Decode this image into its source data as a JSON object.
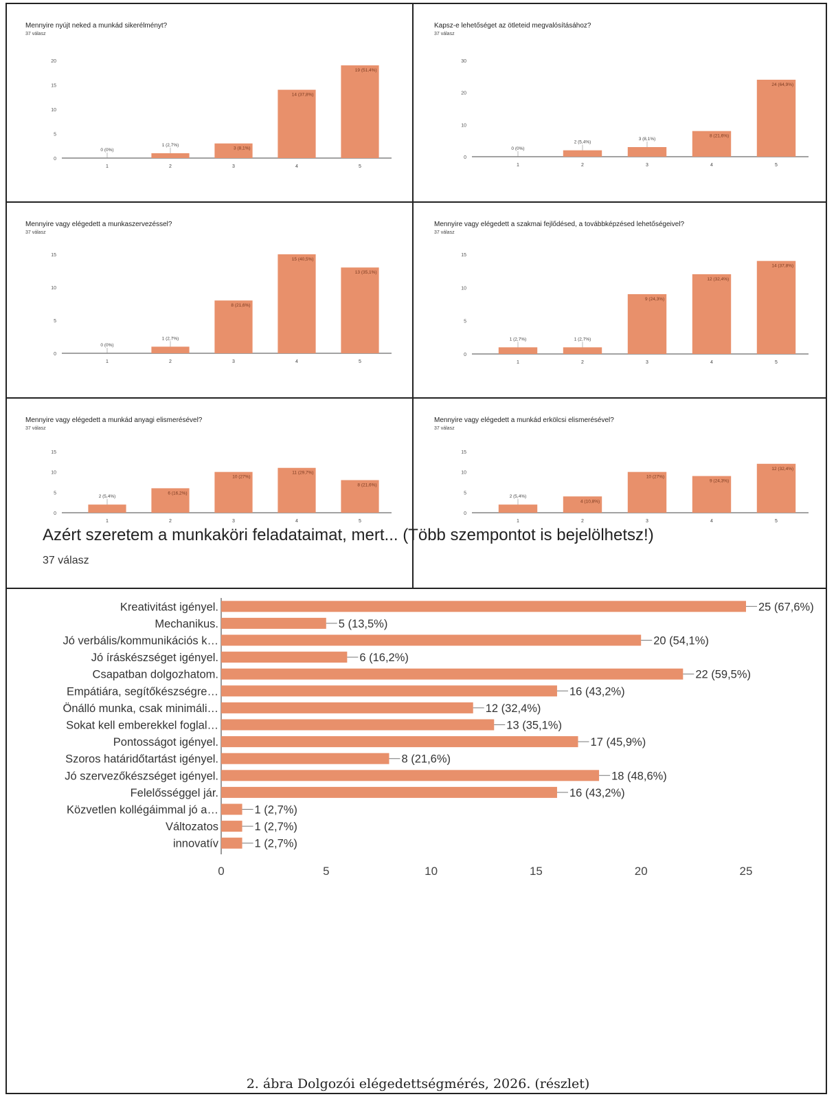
{
  "small_charts": [
    {
      "title": "Mennyire nyújt neked a munkád sikerélményt?",
      "subtitle": "37 válasz"
    },
    {
      "title": "Kapsz-e lehetőséget az ötleteid megvalósításához?",
      "subtitle": "37 válasz"
    },
    {
      "title": "Mennyire vagy elégedett a munkaszervezéssel?",
      "subtitle": "37 válasz"
    },
    {
      "title": "Mennyire vagy elégedett a szakmai fejlődésed, a továbbképzésed lehetőségeivel?",
      "subtitle": "37 válasz"
    },
    {
      "title": "Mennyire vagy elégedett a munkád anyagi elismerésével?",
      "subtitle": "37 válasz"
    },
    {
      "title": "Mennyire vagy elégedett a munkád erkölcsi elismerésével?",
      "subtitle": "37 válasz"
    }
  ],
  "big_chart": {
    "title": "Azért szeretem a munkaköri feladataimat, mert... (Több szempontot is bejelölhetsz!)",
    "subtitle": "37 válasz"
  },
  "caption": "2. ábra Dolgozói elégedettségmérés, 2026. (részlet)",
  "bar_color": "#e8906b",
  "chart_data": [
    {
      "type": "bar",
      "title": "Mennyire nyújt neked a munkád sikerélményt?",
      "categories": [
        "1",
        "2",
        "3",
        "4",
        "5"
      ],
      "values": [
        0,
        1,
        3,
        14,
        19
      ],
      "labels": [
        "0 (0%)",
        "1 (2,7%)",
        "3 (8,1%)",
        "14 (37,8%)",
        "19 (51,4%)"
      ],
      "ylim": [
        0,
        20
      ],
      "yticks": [
        0,
        5,
        10,
        15,
        20
      ]
    },
    {
      "type": "bar",
      "title": "Kapsz-e lehetőséget az ötleteid megvalósításához?",
      "categories": [
        "1",
        "2",
        "3",
        "4",
        "5"
      ],
      "values": [
        0,
        2,
        3,
        8,
        24
      ],
      "labels": [
        "0 (0%)",
        "2 (5,4%)",
        "3 (8,1%)",
        "8 (21,6%)",
        "24 (64,9%)"
      ],
      "ylim": [
        0,
        30
      ],
      "yticks": [
        0,
        10,
        20,
        30
      ]
    },
    {
      "type": "bar",
      "title": "Mennyire vagy elégedett a munkaszervezéssel?",
      "categories": [
        "1",
        "2",
        "3",
        "4",
        "5"
      ],
      "values": [
        0,
        1,
        8,
        15,
        13
      ],
      "labels": [
        "0 (0%)",
        "1 (2,7%)",
        "8 (21,6%)",
        "15 (40,5%)",
        "13 (35,1%)"
      ],
      "ylim": [
        0,
        15
      ],
      "yticks": [
        0,
        5,
        10,
        15
      ]
    },
    {
      "type": "bar",
      "title": "Mennyire vagy elégedett a szakmai fejlődésed, a továbbképzésed lehetőségeivel?",
      "categories": [
        "1",
        "2",
        "3",
        "4",
        "5"
      ],
      "values": [
        1,
        1,
        9,
        12,
        14
      ],
      "labels": [
        "1 (2,7%)",
        "1 (2,7%)",
        "9 (24,3%)",
        "12 (32,4%)",
        "14 (37,8%)"
      ],
      "ylim": [
        0,
        15
      ],
      "yticks": [
        0,
        5,
        10,
        15
      ]
    },
    {
      "type": "bar",
      "title": "Mennyire vagy elégedett a munkád anyagi elismerésével?",
      "categories": [
        "1",
        "2",
        "3",
        "4",
        "5"
      ],
      "values": [
        2,
        6,
        10,
        11,
        8
      ],
      "labels": [
        "2 (5,4%)",
        "6 (16,2%)",
        "10 (27%)",
        "11 (29,7%)",
        "8 (21,6%)"
      ],
      "ylim": [
        0,
        15
      ],
      "yticks": [
        0,
        5,
        10,
        15
      ]
    },
    {
      "type": "bar",
      "title": "Mennyire vagy elégedett a munkád erkölcsi elismerésével?",
      "categories": [
        "1",
        "2",
        "3",
        "4",
        "5"
      ],
      "values": [
        2,
        4,
        10,
        9,
        12
      ],
      "labels": [
        "2 (5,4%)",
        "4 (10,8%)",
        "10 (27%)",
        "9 (24,3%)",
        "12 (32,4%)"
      ],
      "ylim": [
        0,
        15
      ],
      "yticks": [
        0,
        5,
        10,
        15
      ]
    },
    {
      "type": "bar",
      "orientation": "horizontal",
      "title": "Azért szeretem a munkaköri feladataimat, mert... (Több szempontot is bejelölhetsz!)",
      "categories": [
        "Kreativitást igényel.",
        "Mechanikus.",
        "Jó verbális/kommunikációs k…",
        "Jó íráskészséget igényel.",
        "Csapatban dolgozhatom.",
        "Empátiára, segítőkészségre…",
        "Önálló munka, csak minimáli…",
        "Sokat kell emberekkel foglal…",
        "Pontosságot igényel.",
        "Szoros határidőtartást igényel.",
        "Jó szervezőkészséget igényel.",
        "Felelősséggel jár.",
        "Közvetlen kollégáimmal jó a…",
        "Változatos",
        "innovatív"
      ],
      "values": [
        25,
        5,
        20,
        6,
        22,
        16,
        12,
        13,
        17,
        8,
        18,
        16,
        1,
        1,
        1
      ],
      "labels": [
        "25 (67,6%)",
        "5 (13,5%)",
        "20 (54,1%)",
        "6 (16,2%)",
        "22 (59,5%)",
        "16 (43,2%)",
        "12 (32,4%)",
        "13 (35,1%)",
        "17 (45,9%)",
        "8 (21,6%)",
        "18 (48,6%)",
        "16 (43,2%)",
        "1 (2,7%)",
        "1 (2,7%)",
        "1 (2,7%)"
      ],
      "xlim": [
        0,
        25
      ],
      "xticks": [
        0,
        5,
        10,
        15,
        20,
        25
      ]
    }
  ]
}
